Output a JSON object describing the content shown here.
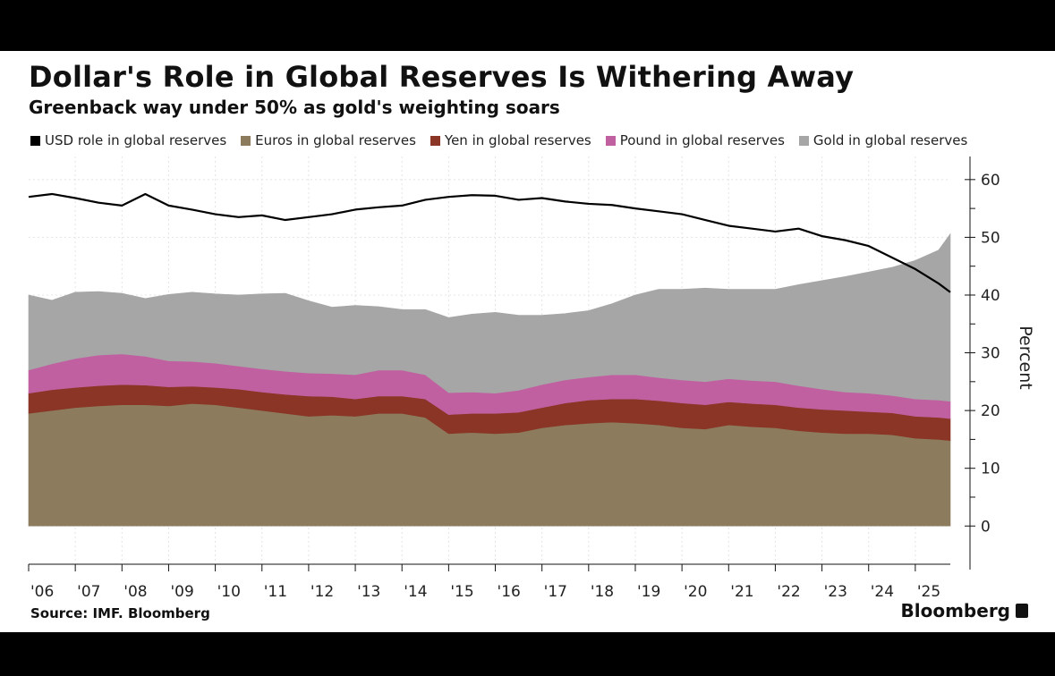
{
  "header": {
    "title": "Dollar's Role in Global Reserves Is Withering Away",
    "subtitle": "Greenback way under 50% as gold's weighting soars"
  },
  "footer": {
    "source": "Source: IMF. Bloomberg",
    "brand": "Bloomberg"
  },
  "chart_data": {
    "type": "area",
    "title": "Dollar's Role in Global Reserves Is Withering Away",
    "subtitle": "Greenback way under 50% as gold's weighting soars",
    "ylabel": "Percent",
    "xlabel": "",
    "ylim": [
      -6,
      64
    ],
    "yticks": [
      0,
      10,
      20,
      30,
      40,
      50,
      60
    ],
    "ytick_labels": [
      "0",
      "10",
      "20",
      "30",
      "40",
      "50",
      "60"
    ],
    "xlim": [
      2006.0,
      2025.75
    ],
    "xtick_labels": [
      "'06",
      "'07",
      "'08",
      "'09",
      "'10",
      "'11",
      "'12",
      "'13",
      "'14",
      "'15",
      "'16",
      "'17",
      "'18",
      "'19",
      "'20",
      "'21",
      "'22",
      "'23",
      "'24",
      "'25"
    ],
    "grid": true,
    "legend_position": "top",
    "stacked_order": [
      "Euros in global reserves",
      "Yen in global reserves",
      "Pound in global reserves",
      "Gold in global reserves"
    ],
    "x": [
      2006.0,
      2006.5,
      2007.0,
      2007.5,
      2008.0,
      2008.5,
      2009.0,
      2009.5,
      2010.0,
      2010.5,
      2011.0,
      2011.5,
      2012.0,
      2012.5,
      2013.0,
      2013.5,
      2014.0,
      2014.5,
      2015.0,
      2015.5,
      2016.0,
      2016.5,
      2017.0,
      2017.5,
      2018.0,
      2018.5,
      2019.0,
      2019.5,
      2020.0,
      2020.5,
      2021.0,
      2021.5,
      2022.0,
      2022.5,
      2023.0,
      2023.5,
      2024.0,
      2024.5,
      2025.0,
      2025.5,
      2025.75
    ],
    "series": [
      {
        "name": "USD role in global reserves",
        "color": "#000000",
        "kind": "line",
        "values": [
          57.0,
          57.5,
          56.8,
          56.0,
          55.5,
          57.5,
          55.5,
          54.8,
          54.0,
          53.5,
          53.8,
          53.0,
          53.5,
          54.0,
          54.8,
          55.2,
          55.5,
          56.5,
          57.0,
          57.3,
          57.2,
          56.5,
          56.8,
          56.2,
          55.8,
          55.6,
          55.0,
          54.5,
          54.0,
          53.0,
          52.0,
          51.5,
          51.0,
          51.5,
          50.2,
          49.5,
          48.5,
          46.5,
          44.5,
          42.0,
          40.5
        ]
      },
      {
        "name": "Euros in global reserves",
        "color": "#8c7b5d",
        "kind": "area",
        "values": [
          19.5,
          20.0,
          20.5,
          20.8,
          21.0,
          21.0,
          20.8,
          21.2,
          21.0,
          20.5,
          20.0,
          19.5,
          19.0,
          19.2,
          19.0,
          19.5,
          19.5,
          18.8,
          16.0,
          16.2,
          16.0,
          16.2,
          17.0,
          17.5,
          17.8,
          18.0,
          17.8,
          17.5,
          17.0,
          16.8,
          17.5,
          17.2,
          17.0,
          16.5,
          16.2,
          16.0,
          16.0,
          15.8,
          15.2,
          15.0,
          14.8
        ]
      },
      {
        "name": "Yen in global reserves",
        "color": "#8a3525",
        "kind": "area",
        "values": [
          3.5,
          3.6,
          3.5,
          3.5,
          3.5,
          3.4,
          3.3,
          3.0,
          3.0,
          3.2,
          3.2,
          3.3,
          3.5,
          3.2,
          3.0,
          3.0,
          3.0,
          3.2,
          3.3,
          3.3,
          3.5,
          3.5,
          3.5,
          3.8,
          4.0,
          4.0,
          4.2,
          4.2,
          4.3,
          4.2,
          4.0,
          4.0,
          4.0,
          4.0,
          4.0,
          4.0,
          3.8,
          3.8,
          3.8,
          3.8,
          3.8
        ]
      },
      {
        "name": "Pound in global reserves",
        "color": "#c060a1",
        "kind": "area",
        "values": [
          4.0,
          4.5,
          5.0,
          5.3,
          5.3,
          5.0,
          4.5,
          4.3,
          4.2,
          4.0,
          4.0,
          4.0,
          4.0,
          4.0,
          4.2,
          4.5,
          4.5,
          4.2,
          3.8,
          3.7,
          3.5,
          3.8,
          4.0,
          4.0,
          4.0,
          4.2,
          4.2,
          4.0,
          4.0,
          4.0,
          4.0,
          4.0,
          4.0,
          3.8,
          3.5,
          3.2,
          3.2,
          3.0,
          3.0,
          3.0,
          3.0
        ]
      },
      {
        "name": "Gold in global reserves",
        "color": "#a6a6a6",
        "kind": "area",
        "values": [
          13.0,
          11.0,
          11.5,
          11.0,
          10.5,
          10.0,
          11.5,
          12.0,
          12.0,
          12.3,
          13.0,
          13.5,
          12.5,
          11.5,
          12.0,
          11.0,
          10.5,
          11.3,
          13.0,
          13.5,
          14.0,
          13.0,
          12.0,
          11.5,
          11.5,
          12.3,
          13.8,
          15.3,
          15.7,
          16.2,
          15.5,
          15.8,
          16.0,
          17.5,
          18.8,
          20.0,
          21.0,
          22.2,
          24.0,
          26.0,
          29.0
        ]
      }
    ]
  }
}
